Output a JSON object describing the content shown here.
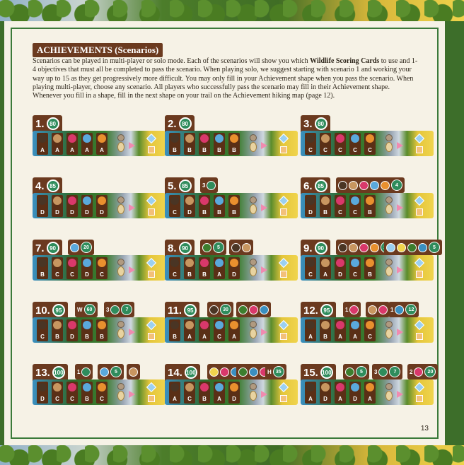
{
  "heading": "ACHIEVEMENTS (Scenarios)",
  "intro_parts": [
    "Scenarios can be played in multi-player or solo mode. Each of the scenarios will show you which ",
    "Wildlife Scoring Cards",
    " to use and 1-4 objectives that must all be completed to pass the scenario. When playing solo, we suggest starting with scenario 1 and working your way up to 15 as they get progressively more difficult. You may only fill in your Achievement shape when you pass the scenario. When playing multi-player, choose any scenario. All players who successfully pass the scenario may fill in their Achievement shape. Whenever you fill in a shape, fill in the next shape on your trail on the Achievement hiking map (page 12)."
  ],
  "page_number": "13",
  "colors": {
    "bear": "#4a3524",
    "elk": "#c89660",
    "salmon": "#d9386b",
    "hawk": "#5aa9dc",
    "fox": "#e9902e",
    "frame": "#3b7a3a",
    "tab": "#6b3a1f",
    "target": "#2f8c5c"
  },
  "scenarios": [
    {
      "num": "1.",
      "target": "80",
      "cards": [
        "A",
        "A",
        "A",
        "A",
        "A"
      ],
      "objectives": []
    },
    {
      "num": "2.",
      "target": "80",
      "cards": [
        "B",
        "B",
        "B",
        "B",
        "B"
      ],
      "objectives": []
    },
    {
      "num": "3.",
      "target": "80",
      "cards": [
        "C",
        "C",
        "C",
        "C",
        "C"
      ],
      "objectives": []
    },
    {
      "num": "4.",
      "target": "85",
      "cards": [
        "D",
        "D",
        "D",
        "D",
        "D"
      ],
      "objectives": []
    },
    {
      "num": "5.",
      "target": "85",
      "cards": [
        "C",
        "D",
        "B",
        "B",
        "B"
      ],
      "objectives": [
        {
          "prefix": "3",
          "icons": [
            "#2f8c5c"
          ],
          "value": ""
        }
      ]
    },
    {
      "num": "6.",
      "target": "85",
      "cards": [
        "D",
        "B",
        "C",
        "C",
        "B"
      ],
      "objectives": [
        {
          "prefix": "",
          "icons": [
            "#4a3524",
            "#c89660",
            "#d9386b",
            "#5aa9dc",
            "#e9902e"
          ],
          "value": "4"
        }
      ]
    },
    {
      "num": "7.",
      "target": "90",
      "cards": [
        "B",
        "C",
        "C",
        "D",
        "C"
      ],
      "objectives": [
        {
          "prefix": "",
          "icons": [
            "#5aa9dc"
          ],
          "value": "20"
        }
      ]
    },
    {
      "num": "8.",
      "target": "90",
      "cards": [
        "C",
        "B",
        "B",
        "A",
        "D"
      ],
      "objectives": [
        {
          "prefix": "",
          "icons": [
            "#3c7e2e"
          ],
          "value": "5"
        },
        {
          "prefix": "",
          "icons": [
            "#4a3524",
            "#c89660"
          ],
          "value": ""
        }
      ]
    },
    {
      "num": "9.",
      "target": "90",
      "cards": [
        "C",
        "A",
        "D",
        "C",
        "B"
      ],
      "objectives": [
        {
          "prefix": "",
          "icons": [
            "#4a3524",
            "#c89660",
            "#d9386b",
            "#e9902e"
          ],
          "value": "10"
        },
        {
          "prefix": "",
          "icons": [
            "#9bd0f0",
            "#f0d44d",
            "#3c7e2e",
            "#3a8fc0"
          ],
          "value": "5"
        }
      ]
    },
    {
      "num": "10.",
      "target": "95",
      "cards": [
        "C",
        "B",
        "D",
        "B",
        "B"
      ],
      "objectives": [
        {
          "prefix": "W",
          "icons": [],
          "value": "60"
        },
        {
          "prefix": "3",
          "icons": [
            "#2f8c5c"
          ],
          "value": "7"
        }
      ]
    },
    {
      "num": "11.",
      "target": "95",
      "cards": [
        "B",
        "A",
        "A",
        "C",
        "A"
      ],
      "objectives": [
        {
          "prefix": "",
          "icons": [
            "#4a3524"
          ],
          "value": "30"
        },
        {
          "prefix": "",
          "icons": [
            "#3c7e2e",
            "#d9386b",
            "#3a8fc0"
          ],
          "value": ""
        }
      ]
    },
    {
      "num": "12.",
      "target": "95",
      "cards": [
        "A",
        "B",
        "A",
        "A",
        "C"
      ],
      "objectives": [
        {
          "prefix": "1",
          "icons": [
            "#d9386b"
          ],
          "value": ""
        },
        {
          "prefix": "",
          "icons": [
            "#c89660",
            "#d9386b"
          ],
          "value": ""
        },
        {
          "prefix": "1",
          "icons": [
            "#3a8fc0"
          ],
          "value": "12"
        }
      ]
    },
    {
      "num": "13.",
      "target": "100",
      "cards": [
        "D",
        "C",
        "C",
        "B",
        "C"
      ],
      "objectives": [
        {
          "prefix": "1",
          "icons": [
            "#2f8c5c"
          ],
          "value": ""
        },
        {
          "prefix": "",
          "icons": [
            "#5aa9dc"
          ],
          "value": "5"
        },
        {
          "prefix": "",
          "icons": [
            "#c89660"
          ],
          "value": ""
        }
      ]
    },
    {
      "num": "14.",
      "target": "100",
      "cards": [
        "A",
        "C",
        "B",
        "A",
        "D"
      ],
      "objectives": [
        {
          "prefix": "",
          "icons": [
            "#f0d44d",
            "#d9386b",
            "#3a8fc0"
          ],
          "value": ""
        },
        {
          "prefix": "",
          "icons": [
            "#3c7e2e",
            "#3a8fc0",
            "#d9386b"
          ],
          "value": ""
        },
        {
          "prefix": "H",
          "icons": [],
          "value": "35"
        }
      ]
    },
    {
      "num": "15.",
      "target": "100",
      "cards": [
        "A",
        "D",
        "A",
        "D",
        "A"
      ],
      "objectives": [
        {
          "prefix": "",
          "icons": [
            "#3c7e2e"
          ],
          "value": "5"
        },
        {
          "prefix": "3",
          "icons": [
            "#2f8c5c"
          ],
          "value": "7"
        },
        {
          "prefix": "2",
          "icons": [
            "#d9386b"
          ],
          "value": "20"
        }
      ]
    }
  ]
}
